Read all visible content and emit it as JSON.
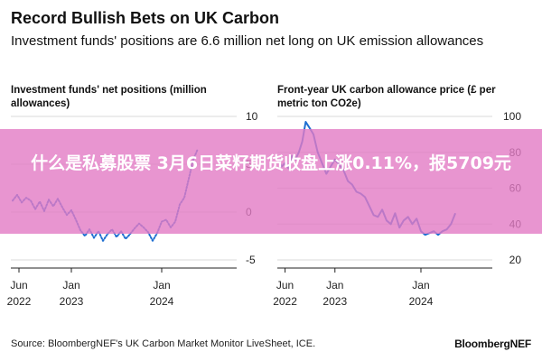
{
  "header": {
    "title": "Record Bullish Bets on UK Carbon",
    "subtitle": "Investment funds' positions are 6.6 million net long on UK emission allowances"
  },
  "footer": {
    "source": "Source: BloombergNEF's UK Carbon Market Monitor LiveSheet, ICE.",
    "brand": "BloombergNEF"
  },
  "overlay": {
    "text": "什么是私募股票 3月6日菜籽期货收盘上涨0.11%，报5709元",
    "color": "#e27ac4"
  },
  "chart_data": [
    {
      "type": "line",
      "title": "Investment funds' net positions (million allowances)",
      "color": "#1f6fd1",
      "style": "dotted",
      "ylim": [
        -5,
        10
      ],
      "yticks": [
        -5,
        0,
        5,
        10
      ],
      "xlim": [
        2022.33,
        2024.83
      ],
      "xticks": [
        {
          "x": 2022.42,
          "label1": "Jun",
          "label2": "2022"
        },
        {
          "x": 2023.0,
          "label1": "Jan",
          "label2": "2023"
        },
        {
          "x": 2024.0,
          "label1": "Jan",
          "label2": "2024"
        }
      ],
      "x": [
        2022.35,
        2022.4,
        2022.45,
        2022.5,
        2022.55,
        2022.6,
        2022.65,
        2022.7,
        2022.75,
        2022.8,
        2022.85,
        2022.9,
        2022.95,
        2023.0,
        2023.05,
        2023.1,
        2023.15,
        2023.2,
        2023.25,
        2023.3,
        2023.35,
        2023.4,
        2023.45,
        2023.5,
        2023.55,
        2023.6,
        2023.65,
        2023.7,
        2023.75,
        2023.8,
        2023.85,
        2023.9,
        2023.95,
        2024.0,
        2024.05,
        2024.1,
        2024.15,
        2024.2,
        2024.25,
        2024.3,
        2024.35,
        2024.4
      ],
      "y": [
        1.2,
        1.8,
        1.0,
        1.5,
        1.2,
        0.3,
        1.1,
        0.1,
        1.3,
        0.6,
        1.4,
        0.5,
        -0.3,
        0.2,
        -0.8,
        -1.9,
        -2.5,
        -1.8,
        -2.7,
        -2.0,
        -3.0,
        -2.3,
        -1.8,
        -2.6,
        -2.0,
        -2.8,
        -2.3,
        -1.7,
        -1.2,
        -1.6,
        -2.1,
        -3.0,
        -2.2,
        -1.0,
        -0.8,
        -1.6,
        -1.0,
        0.8,
        1.5,
        3.5,
        5.5,
        6.6
      ]
    },
    {
      "type": "line",
      "title": "Front-year UK carbon allowance price (£ per metric ton CO2e)",
      "color": "#1f6fd1",
      "style": "solid",
      "ylim": [
        20,
        100
      ],
      "yticks": [
        20,
        40,
        60,
        80,
        100
      ],
      "xlim": [
        2022.33,
        2024.83
      ],
      "xticks": [
        {
          "x": 2022.42,
          "label1": "Jun",
          "label2": "2022"
        },
        {
          "x": 2023.0,
          "label1": "Jan",
          "label2": "2023"
        },
        {
          "x": 2024.0,
          "label1": "Jan",
          "label2": "2024"
        }
      ],
      "x": [
        2022.35,
        2022.38,
        2022.42,
        2022.46,
        2022.5,
        2022.54,
        2022.58,
        2022.62,
        2022.66,
        2022.7,
        2022.75,
        2022.8,
        2022.85,
        2022.9,
        2022.95,
        2023.0,
        2023.05,
        2023.1,
        2023.15,
        2023.2,
        2023.25,
        2023.3,
        2023.35,
        2023.4,
        2023.45,
        2023.5,
        2023.55,
        2023.6,
        2023.65,
        2023.7,
        2023.75,
        2023.8,
        2023.85,
        2023.9,
        2023.95,
        2024.0,
        2024.05,
        2024.1,
        2024.15,
        2024.2,
        2024.25,
        2024.3,
        2024.35,
        2024.4
      ],
      "y": [
        75,
        72,
        74,
        71,
        78,
        76,
        80,
        86,
        97,
        94,
        90,
        80,
        74,
        68,
        72,
        76,
        73,
        70,
        64,
        62,
        58,
        57,
        55,
        50,
        45,
        44,
        48,
        42,
        40,
        46,
        38,
        42,
        44,
        40,
        43,
        36,
        34,
        35,
        36,
        34,
        36,
        37,
        40,
        46
      ]
    }
  ]
}
